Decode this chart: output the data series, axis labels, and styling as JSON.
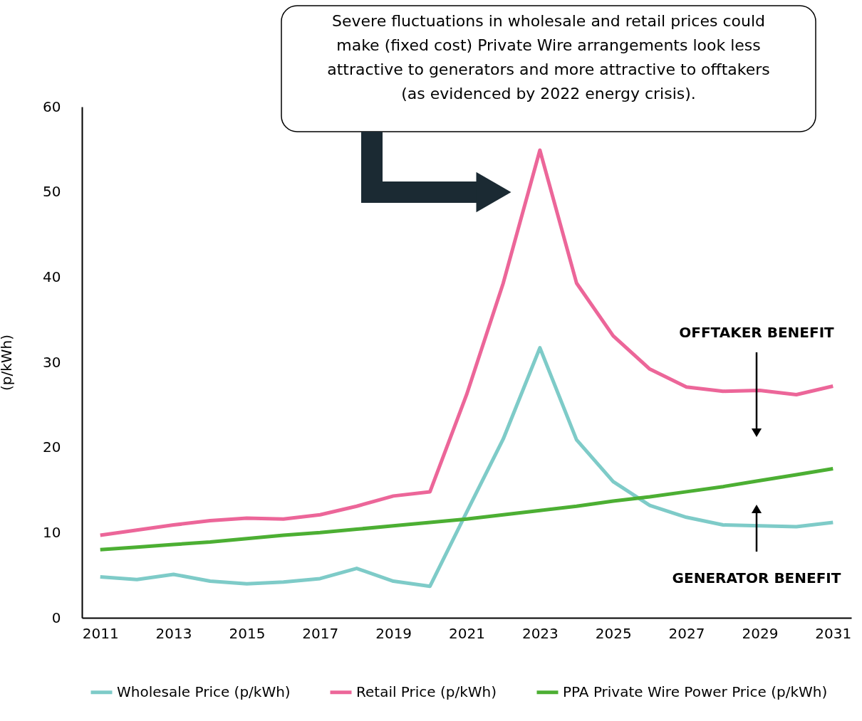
{
  "chart_data": {
    "type": "line",
    "x": [
      2011,
      2012,
      2013,
      2014,
      2015,
      2016,
      2017,
      2018,
      2019,
      2020,
      2021,
      2022,
      2023,
      2024,
      2025,
      2026,
      2027,
      2028,
      2029,
      2030,
      2031
    ],
    "series": [
      {
        "name": "Wholesale Price (p/kWh)",
        "color": "#7ecbc8",
        "values": [
          4.8,
          4.5,
          5.1,
          4.3,
          4.0,
          4.2,
          4.6,
          5.8,
          4.3,
          3.7,
          12.4,
          21.0,
          31.7,
          20.9,
          16.0,
          13.2,
          11.8,
          10.9,
          10.8,
          10.7,
          11.2
        ]
      },
      {
        "name": "Retail Price (p/kWh)",
        "color": "#ec6699",
        "values": [
          9.7,
          10.3,
          10.9,
          11.4,
          11.7,
          11.6,
          12.1,
          13.1,
          14.3,
          14.8,
          26.2,
          39.3,
          54.9,
          39.3,
          33.1,
          29.2,
          27.1,
          26.6,
          26.7,
          26.2,
          27.2
        ]
      },
      {
        "name": "PPA Private Wire Power Price (p/kWh)",
        "color": "#4caf33",
        "values": [
          8.0,
          8.3,
          8.6,
          8.9,
          9.3,
          9.7,
          10.0,
          10.4,
          10.8,
          11.2,
          11.6,
          12.1,
          12.6,
          13.1,
          13.7,
          14.2,
          14.8,
          15.4,
          16.1,
          16.8,
          17.5
        ]
      }
    ],
    "ylabel": "(p/kWh)",
    "xlim": [
      2010.5,
      2031.5
    ],
    "xticks": [
      2011,
      2013,
      2015,
      2017,
      2019,
      2021,
      2023,
      2025,
      2027,
      2029,
      2031
    ],
    "ylim": [
      0,
      60
    ],
    "yticks": [
      0,
      10,
      20,
      30,
      40,
      50,
      60
    ],
    "grid": false,
    "legend": "bottom",
    "marker": "none",
    "line_style": "solid",
    "annotations": [
      "Severe fluctuations in wholesale and retail prices could\nmake (fixed cost) Private Wire arrangements look less\nattractive to generators and more attractive to offtakers\n(as evidenced by 2022 energy crisis).",
      "OFFTAKER BENEFIT",
      "GENERATOR BENEFIT"
    ]
  }
}
